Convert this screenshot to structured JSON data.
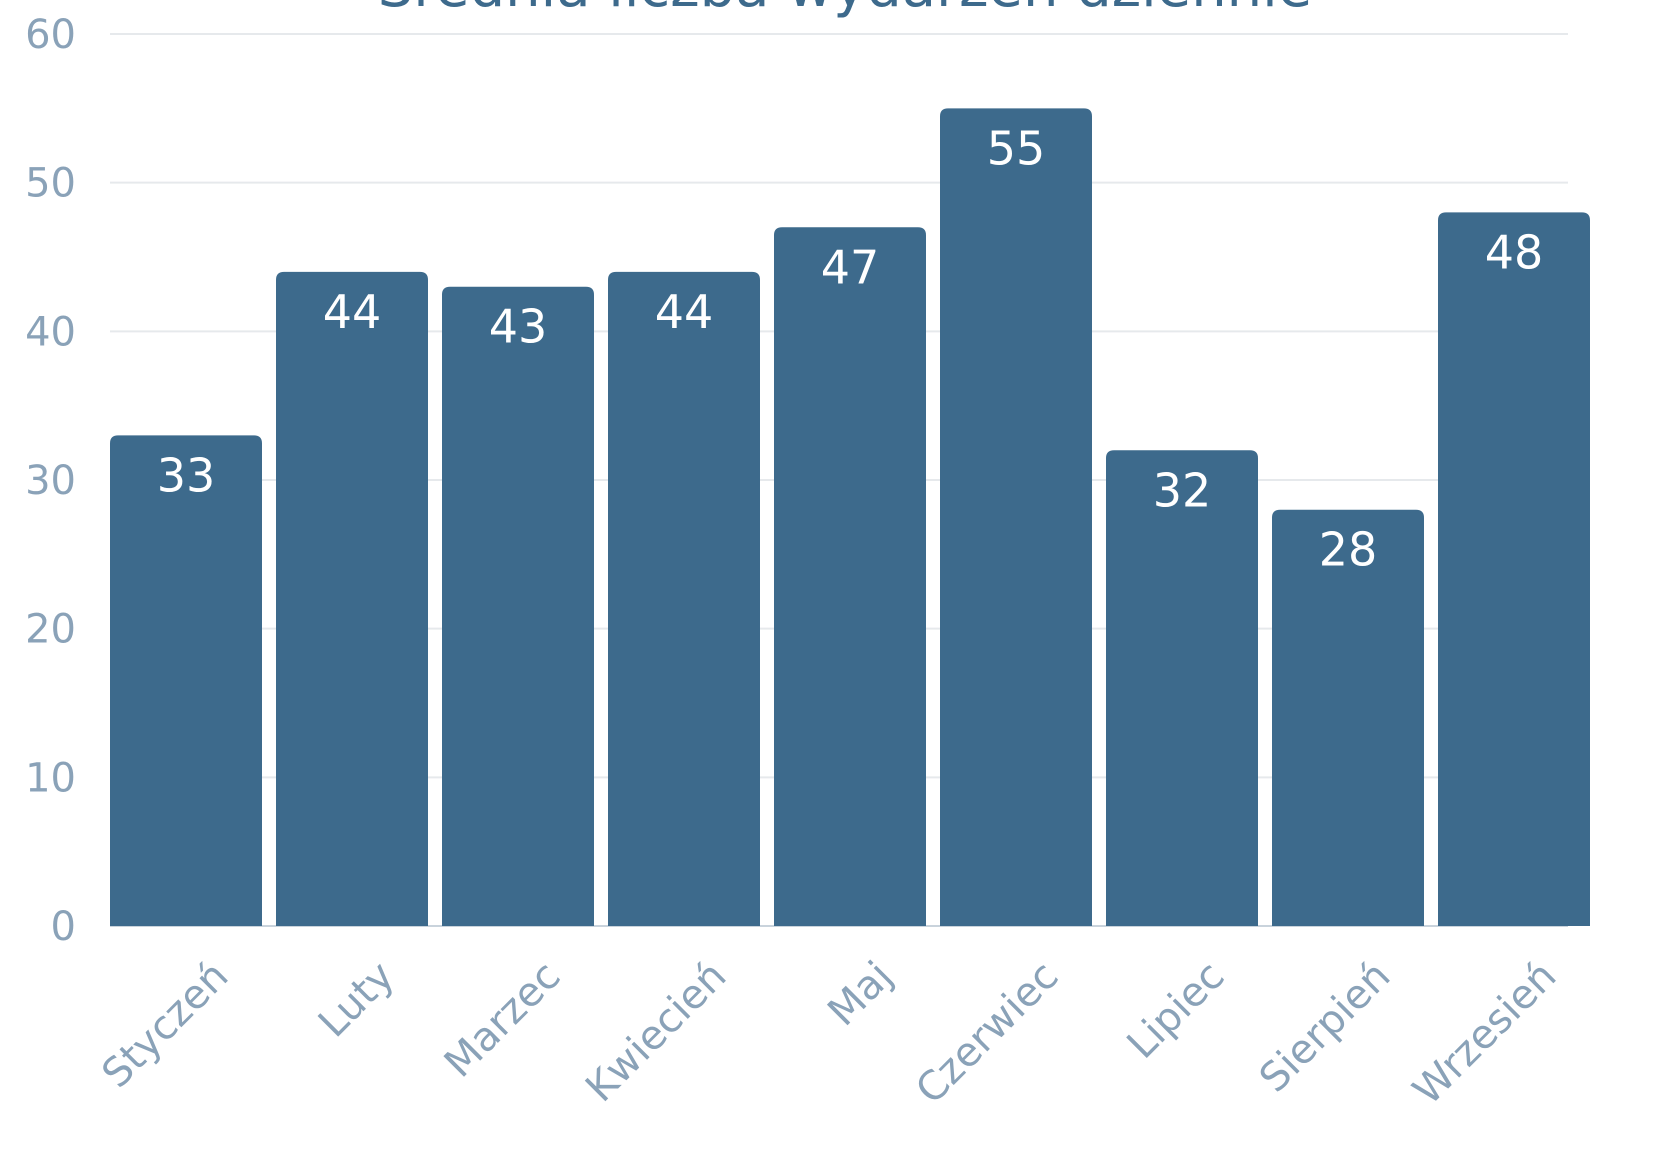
{
  "chart_data": {
    "type": "bar",
    "title": "Średnia liczba wydarzeń dziennie",
    "xlabel": "",
    "ylabel": "",
    "categories": [
      "Styczeń",
      "Luty",
      "Marzec",
      "Kwiecień",
      "Maj",
      "Czerwiec",
      "Lipiec",
      "Sierpień",
      "Wrzesień"
    ],
    "values": [
      33,
      44,
      43,
      44,
      47,
      55,
      32,
      28,
      48
    ],
    "ylim": [
      0,
      60
    ],
    "yticks": [
      0,
      10,
      20,
      30,
      40,
      50,
      60
    ],
    "grid": true,
    "legend": "none",
    "colors": {
      "bar": "#3d6a8c",
      "title": "#3d6a8c",
      "axis_text": "#8aa2b8",
      "value_label": "#ffffff"
    }
  }
}
